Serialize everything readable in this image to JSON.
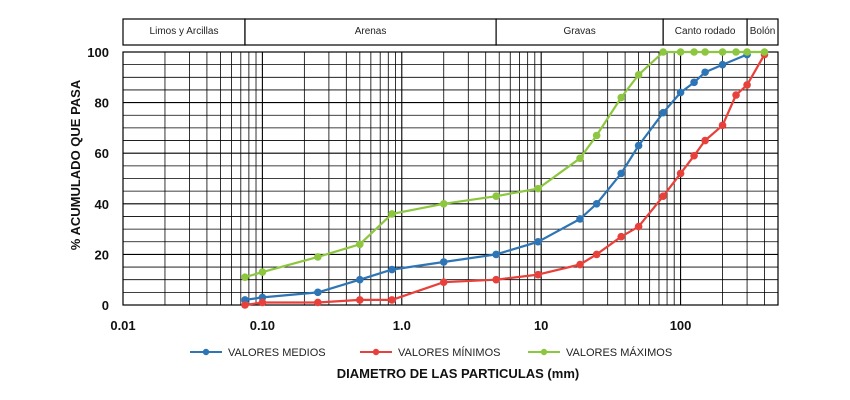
{
  "chart_data": {
    "type": "line",
    "x_scale": "log",
    "xlim": [
      0.01,
      500
    ],
    "ylim": [
      0,
      100
    ],
    "x_ticks": [
      {
        "value": 0.01,
        "label": "0.01"
      },
      {
        "value": 0.1,
        "label": "0.10"
      },
      {
        "value": 1,
        "label": "1.0"
      },
      {
        "value": 10,
        "label": "10"
      },
      {
        "value": 100,
        "label": "100"
      }
    ],
    "y_ticks": [
      {
        "value": 0,
        "label": "0"
      },
      {
        "value": 20,
        "label": "20"
      },
      {
        "value": 40,
        "label": "40"
      },
      {
        "value": 60,
        "label": "60"
      },
      {
        "value": 80,
        "label": "80"
      },
      {
        "value": 100,
        "label": "100"
      }
    ],
    "xlabel": "DIAMETRO DE LAS PARTICULAS (mm)",
    "ylabel": "% ACUMULADO QUE PASA",
    "grid": true,
    "legend_position": "bottom",
    "size_bands": [
      {
        "label": "Limos y Arcillas",
        "from": 0.01,
        "to": 0.075
      },
      {
        "label": "Arenas",
        "from": 0.075,
        "to": 4.75
      },
      {
        "label": "Gravas",
        "from": 4.75,
        "to": 75
      },
      {
        "label": "Canto rodado",
        "from": 75,
        "to": 300
      },
      {
        "label": "Bolón",
        "from": 300,
        "to": 1000
      }
    ],
    "series": [
      {
        "name": "VALORES MEDIOS",
        "color": "#2e75b6",
        "x": [
          0.075,
          0.1,
          0.25,
          0.5,
          0.85,
          2,
          4.75,
          9.5,
          19,
          25,
          37.5,
          50,
          75,
          100,
          125,
          150,
          200,
          300
        ],
        "y": [
          2,
          3,
          5,
          10,
          14,
          17,
          20,
          25,
          34,
          40,
          52,
          63,
          76,
          84,
          88,
          92,
          95,
          99
        ]
      },
      {
        "name": "VALORES MÍNIMOS",
        "color": "#e8403a",
        "x": [
          0.075,
          0.1,
          0.25,
          0.5,
          0.85,
          2,
          4.75,
          9.5,
          19,
          25,
          37.5,
          50,
          75,
          100,
          125,
          150,
          200,
          250,
          300,
          400
        ],
        "y": [
          0,
          1,
          1,
          2,
          2,
          9,
          10,
          12,
          16,
          20,
          27,
          31,
          43,
          52,
          59,
          65,
          71,
          83,
          87,
          99
        ]
      },
      {
        "name": "VALORES MÁXIMOS",
        "color": "#8dc63f",
        "x": [
          0.075,
          0.1,
          0.25,
          0.5,
          0.85,
          2,
          4.75,
          9.5,
          19,
          25,
          37.5,
          50,
          75,
          100,
          125,
          150,
          200,
          250,
          300,
          400
        ],
        "y": [
          11,
          13,
          19,
          24,
          36,
          40,
          43,
          46,
          58,
          67,
          82,
          91,
          100,
          100,
          100,
          100,
          100,
          100,
          100,
          100
        ]
      }
    ]
  }
}
